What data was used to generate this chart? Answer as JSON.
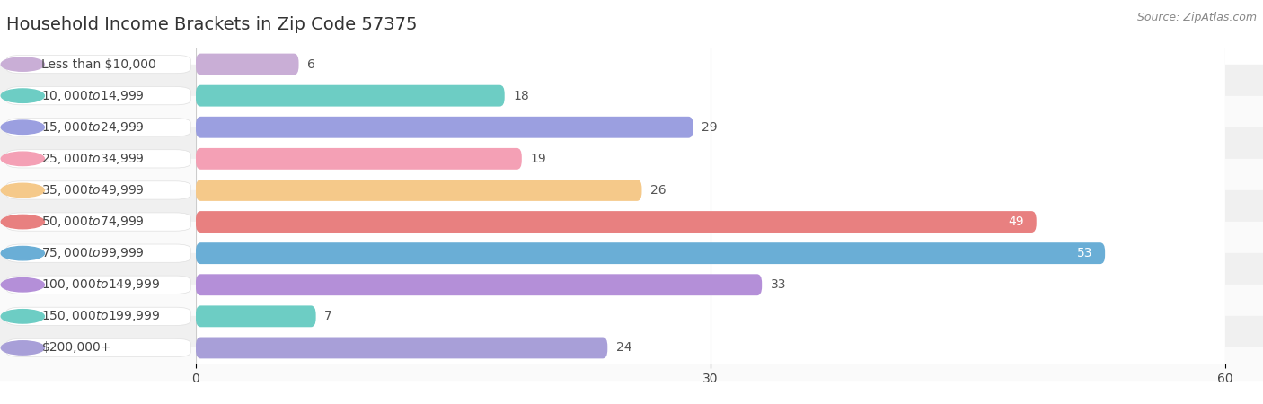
{
  "title": "Household Income Brackets in Zip Code 57375",
  "source": "Source: ZipAtlas.com",
  "categories": [
    "Less than $10,000",
    "$10,000 to $14,999",
    "$15,000 to $24,999",
    "$25,000 to $34,999",
    "$35,000 to $49,999",
    "$50,000 to $74,999",
    "$75,000 to $99,999",
    "$100,000 to $149,999",
    "$150,000 to $199,999",
    "$200,000+"
  ],
  "values": [
    6,
    18,
    29,
    19,
    26,
    49,
    53,
    33,
    7,
    24
  ],
  "colors": [
    "#c9aed6",
    "#6dcdc4",
    "#9b9fe0",
    "#f4a0b5",
    "#f5c98a",
    "#e88080",
    "#6aaed6",
    "#b48fd8",
    "#6dcdc4",
    "#a89fd8"
  ],
  "xlim": [
    0,
    60
  ],
  "xticks": [
    0,
    30,
    60
  ],
  "bar_height": 0.68,
  "row_colors": [
    "#f0f0f0",
    "#fafafa"
  ],
  "title_fontsize": 14,
  "label_fontsize": 10,
  "value_fontsize": 10,
  "background_color": "#ffffff",
  "label_color": "#444444",
  "value_color_inside": "#ffffff",
  "value_color_outside": "#555555",
  "source_color": "#888888",
  "source_fontsize": 9,
  "title_color": "#333333",
  "label_panel_color": "#ffffff",
  "label_panel_border": "#e0e0e0",
  "inside_threshold": 40
}
